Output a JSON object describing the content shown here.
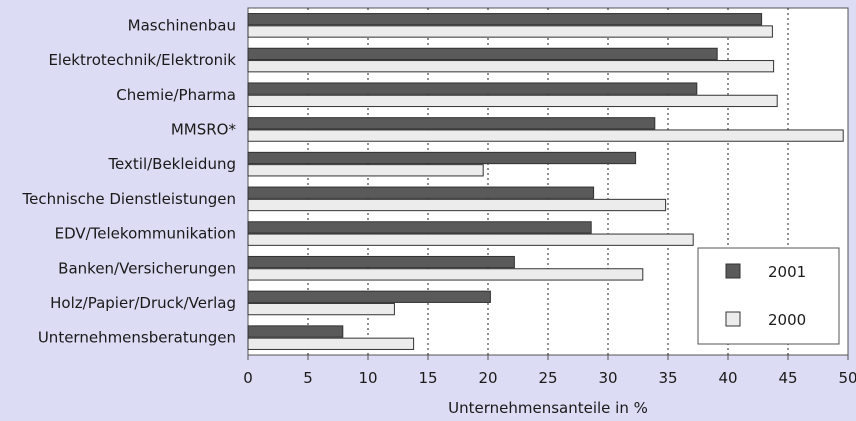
{
  "chart_data": {
    "type": "bar",
    "orientation": "horizontal",
    "categories": [
      "Maschinenbau",
      "Elektrotechnik/Elektronik",
      "Chemie/Pharma",
      "MMSRO*",
      "Textil/Bekleidung",
      "Technische Dienstleistungen",
      "EDV/Telekommunikation",
      "Banken/Versicherungen",
      "Holz/Papier/Druck/Verlag",
      "Unternehmensberatungen"
    ],
    "series": [
      {
        "name": "2001",
        "color": "#5a5a5a",
        "values": [
          42.8,
          39.1,
          37.4,
          33.9,
          32.3,
          28.8,
          28.6,
          22.2,
          20.2,
          7.9
        ]
      },
      {
        "name": "2000",
        "color": "#ececec",
        "values": [
          43.7,
          43.8,
          44.1,
          49.6,
          19.6,
          34.8,
          37.1,
          32.9,
          12.2,
          13.8
        ]
      }
    ],
    "xlabel": "Unternehmensanteile in %",
    "ylabel": "",
    "xlim": [
      0,
      50
    ],
    "xticks": [
      0,
      5,
      10,
      15,
      20,
      25,
      30,
      35,
      40,
      45,
      50
    ],
    "grid": "vertical dotted",
    "legend_position": "bottom-right"
  }
}
